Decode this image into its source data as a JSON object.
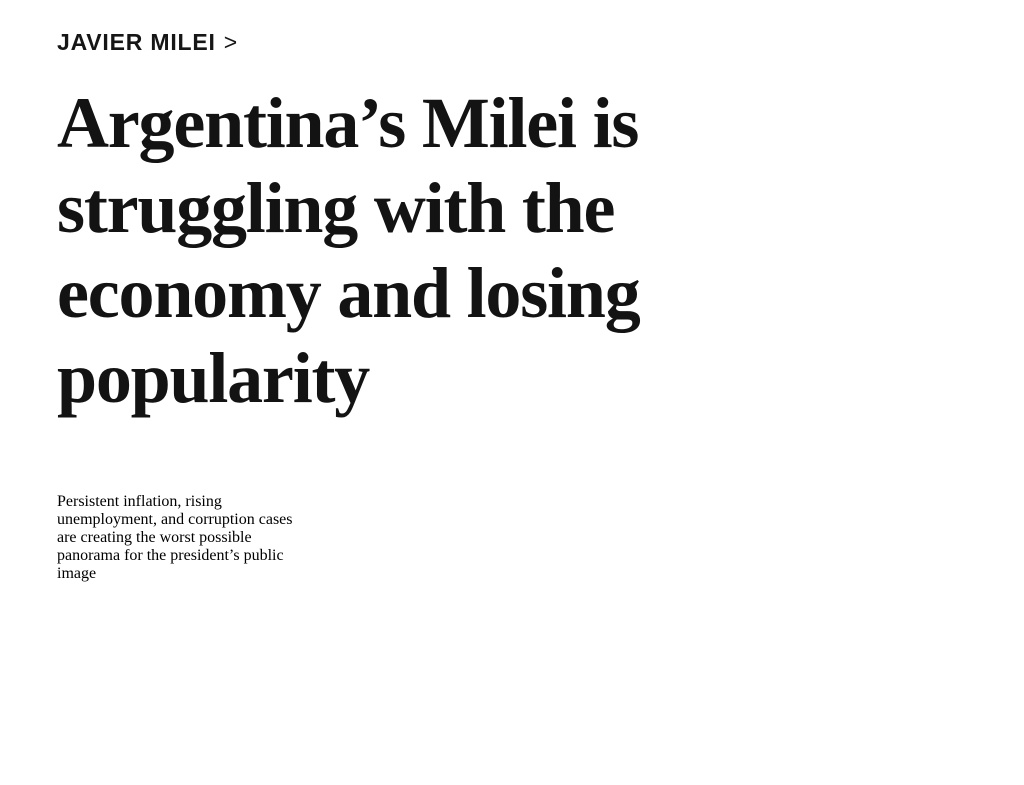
{
  "page": {
    "background_color": "#ffffff",
    "text_color": "#131313"
  },
  "article": {
    "kicker": {
      "label": "JAVIER MILEI",
      "chevron": ">"
    },
    "headline": {
      "text": "Argentina’s Milei is struggling with the economy and losing popularity",
      "lines": [
        "Argentina’s Milei is",
        "struggling with the",
        "economy and losing",
        "popularity"
      ]
    },
    "standfirst": {
      "text": "Persistent inflation, rising unemployment, and corruption cases are creating the worst possible panorama for the president’s public image",
      "lines": [
        "Persistent inflation, rising",
        "unemployment, and corruption cases",
        "are creating the worst possible",
        "panorama for the president’s public",
        "image"
      ]
    }
  }
}
